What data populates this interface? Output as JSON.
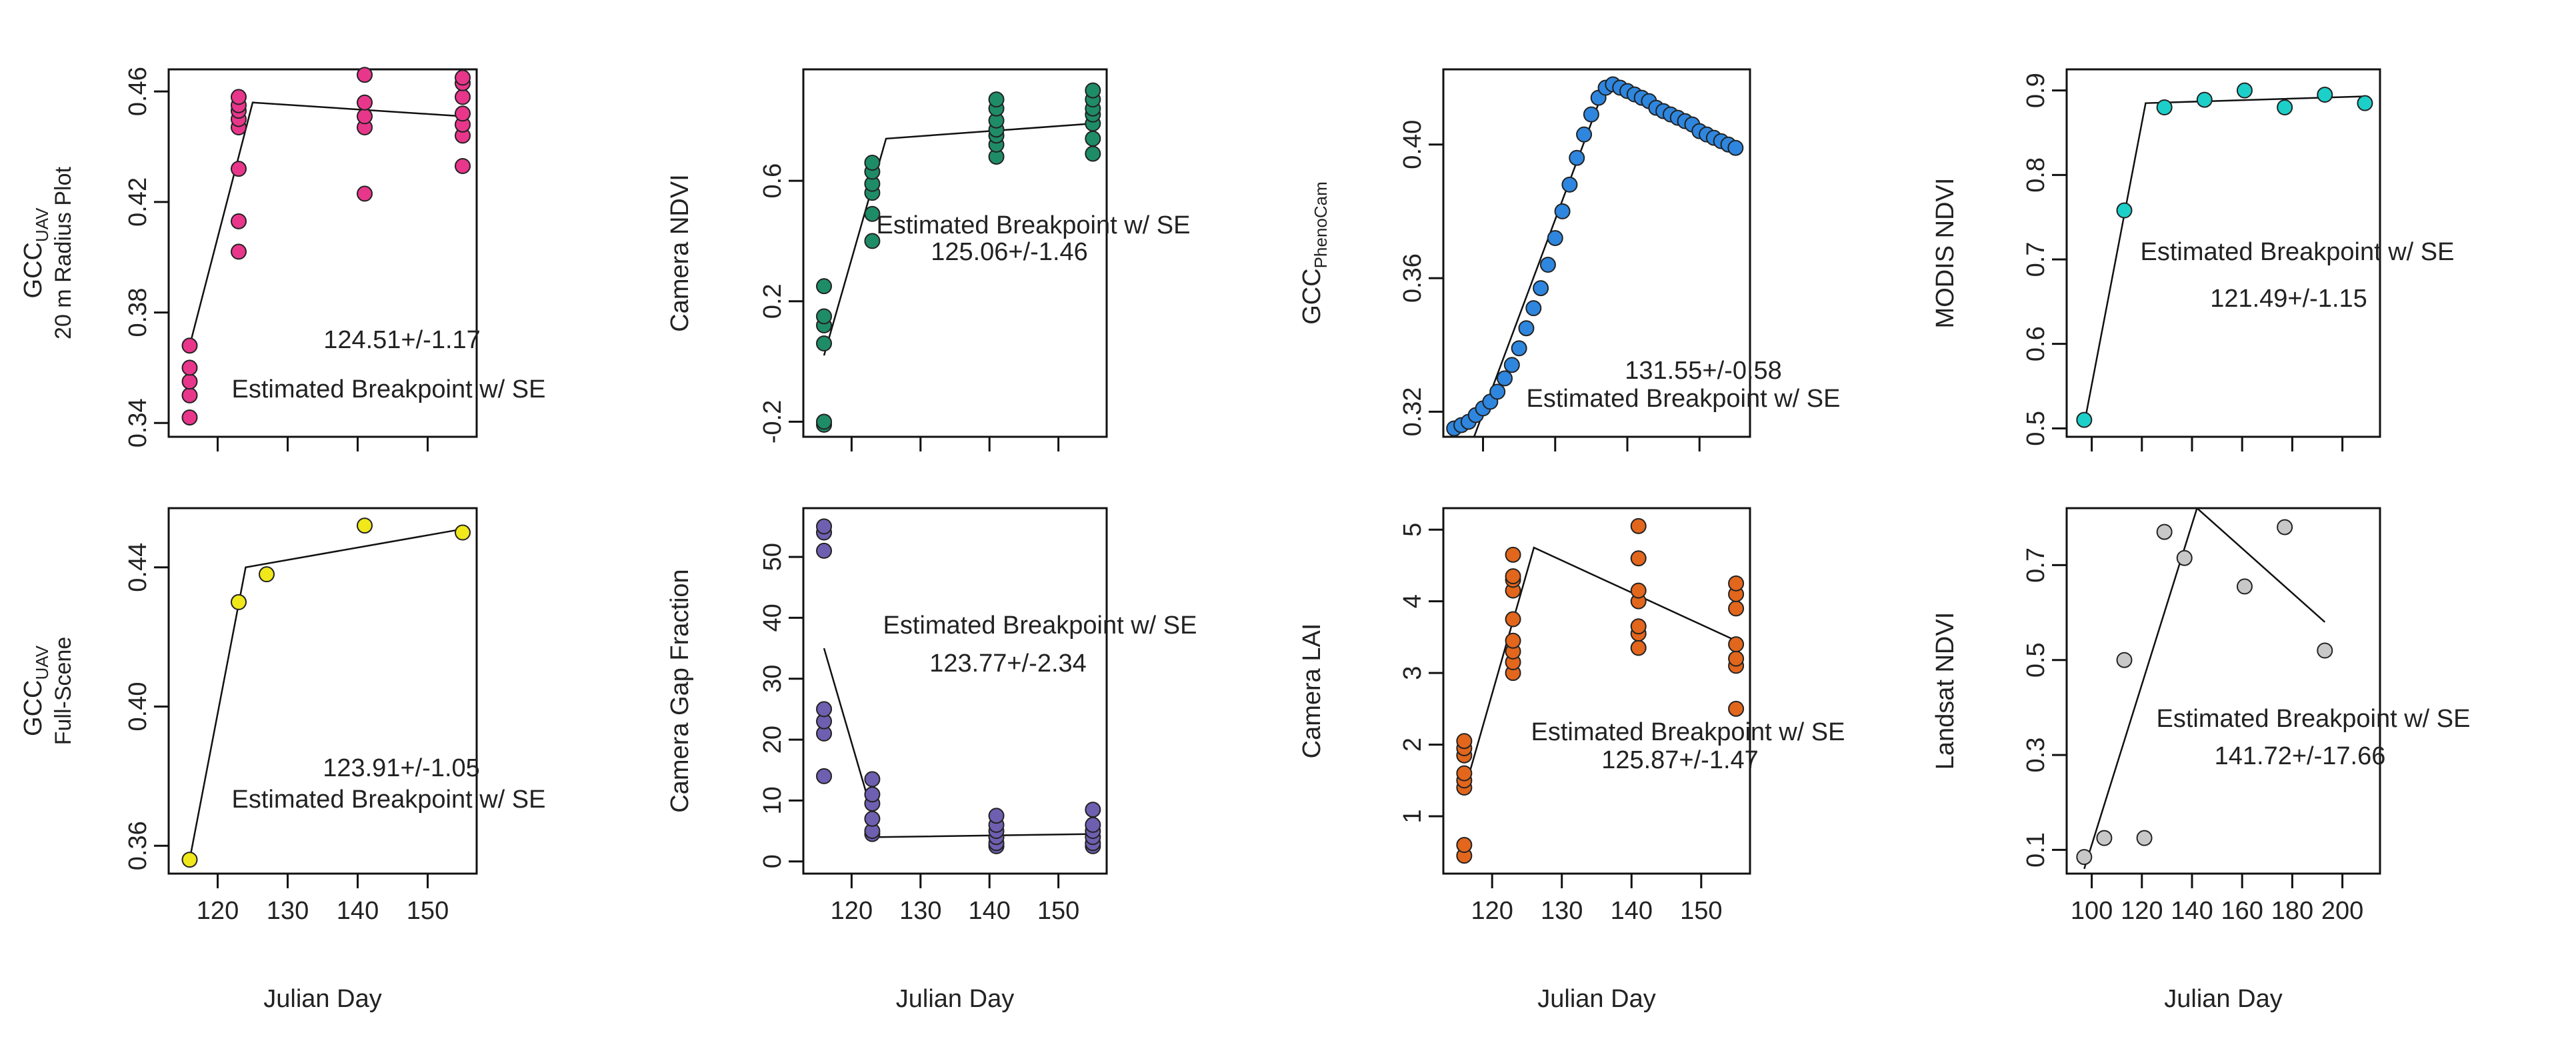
{
  "chart_data": [
    {
      "id": "p1",
      "type": "scatter",
      "ylabel": {
        "main": "GCC",
        "sub": "UAV",
        "line2": "20 m Radius Plot"
      },
      "xlabel": "",
      "xlim": [
        113,
        157
      ],
      "ylim": [
        0.335,
        0.468
      ],
      "xticks": [
        120,
        130,
        140,
        150
      ],
      "xticklabels": [],
      "yticks": [
        0.34,
        0.38,
        0.42,
        0.46
      ],
      "yticklabels": [
        "0.34",
        "0.38",
        "0.42",
        "0.46"
      ],
      "color": "#e8368b",
      "x": [
        116,
        116,
        116,
        116,
        116,
        123,
        123,
        123,
        123,
        123,
        123,
        123,
        123,
        141,
        141,
        141,
        141,
        141,
        155,
        155,
        155,
        155,
        155,
        155,
        155
      ],
      "y": [
        0.342,
        0.35,
        0.355,
        0.36,
        0.368,
        0.402,
        0.413,
        0.432,
        0.447,
        0.45,
        0.453,
        0.455,
        0.458,
        0.423,
        0.447,
        0.451,
        0.456,
        0.466,
        0.433,
        0.444,
        0.448,
        0.452,
        0.458,
        0.463,
        0.465
      ],
      "fit": {
        "x": [
          116,
          125,
          155
        ],
        "y": [
          0.368,
          0.456,
          0.451
        ]
      },
      "annotations": [
        "124.51+/-1.17",
        "Estimated Breakpoint w/ SE"
      ]
    },
    {
      "id": "p2",
      "type": "scatter",
      "ylabel": {
        "main": "Camera NDVI"
      },
      "xlabel": "",
      "xlim": [
        113,
        157
      ],
      "ylim": [
        -0.25,
        0.97
      ],
      "xticks": [
        120,
        130,
        140,
        150
      ],
      "xticklabels": [],
      "yticks": [
        -0.2,
        0.2,
        0.6
      ],
      "yticklabels": [
        "-0.2",
        "0.2",
        "0.6"
      ],
      "color": "#1f8c68",
      "x": [
        116,
        116,
        116,
        116,
        116,
        116,
        123,
        123,
        123,
        123,
        123,
        123,
        141,
        141,
        141,
        141,
        141,
        141,
        141,
        155,
        155,
        155,
        155,
        155,
        155,
        155
      ],
      "y": [
        -0.21,
        -0.2,
        0.06,
        0.12,
        0.15,
        0.25,
        0.4,
        0.49,
        0.56,
        0.59,
        0.63,
        0.66,
        0.68,
        0.72,
        0.75,
        0.77,
        0.8,
        0.84,
        0.87,
        0.69,
        0.74,
        0.79,
        0.82,
        0.84,
        0.87,
        0.9
      ],
      "fit": {
        "x": [
          116,
          125,
          155
        ],
        "y": [
          0.02,
          0.74,
          0.79
        ]
      },
      "annotations": [
        "Estimated Breakpoint w/ SE",
        "125.06+/-1.46"
      ]
    },
    {
      "id": "p3",
      "type": "scatter",
      "ylabel": {
        "main": "GCC",
        "sub": "PhenoCam"
      },
      "xlabel": "",
      "xlim": [
        114.5,
        157
      ],
      "ylim": [
        0.3125,
        0.4225
      ],
      "xticks": [
        120,
        130,
        140,
        150
      ],
      "xticklabels": [],
      "yticks": [
        0.32,
        0.36,
        0.4
      ],
      "yticklabels": [
        "0.32",
        "0.36",
        "0.40"
      ],
      "color": "#2e86de",
      "x": [
        116,
        117,
        118,
        119,
        120,
        121,
        122,
        123,
        124,
        125,
        126,
        127,
        128,
        129,
        130,
        131,
        132,
        133,
        134,
        135,
        136,
        137,
        138,
        139,
        140,
        141,
        142,
        143,
        144,
        145,
        146,
        147,
        148,
        149,
        150,
        151,
        152,
        153,
        154,
        155
      ],
      "y": [
        0.315,
        0.316,
        0.317,
        0.319,
        0.321,
        0.323,
        0.326,
        0.33,
        0.334,
        0.339,
        0.345,
        0.351,
        0.357,
        0.364,
        0.372,
        0.38,
        0.388,
        0.396,
        0.403,
        0.409,
        0.414,
        0.417,
        0.418,
        0.417,
        0.416,
        0.415,
        0.414,
        0.413,
        0.411,
        0.41,
        0.409,
        0.408,
        0.407,
        0.406,
        0.404,
        0.403,
        0.402,
        0.401,
        0.4,
        0.399
      ],
      "fit": {
        "x": [
          118.5,
          137,
          155
        ],
        "y": [
          0.311,
          0.418,
          0.398
        ]
      },
      "annotations": [
        "131.55+/-0.58",
        "Estimated Breakpoint w/ SE"
      ]
    },
    {
      "id": "p4",
      "type": "scatter",
      "ylabel": {
        "main": "MODIS NDVI"
      },
      "xlabel": "",
      "xlim": [
        90,
        215
      ],
      "ylim": [
        0.49,
        0.925
      ],
      "xticks": [
        100,
        120,
        140,
        160,
        180,
        200
      ],
      "xticklabels": [],
      "yticks": [
        0.5,
        0.6,
        0.7,
        0.8,
        0.9
      ],
      "yticklabels": [
        "0.5",
        "0.6",
        "0.7",
        "0.8",
        "0.9"
      ],
      "color": "#1ccfc9",
      "x": [
        97,
        113,
        129,
        145,
        161,
        177,
        193,
        209
      ],
      "y": [
        0.51,
        0.758,
        0.88,
        0.889,
        0.9,
        0.88,
        0.895,
        0.885
      ],
      "fit": {
        "x": [
          97,
          121.5,
          209
        ],
        "y": [
          0.505,
          0.885,
          0.893
        ]
      },
      "annotations": [
        "Estimated Breakpoint w/ SE",
        "121.49+/-1.15"
      ]
    },
    {
      "id": "p5",
      "type": "scatter",
      "ylabel": {
        "main": "GCC",
        "sub": "UAV",
        "line2": "Full-Scene"
      },
      "xlabel": "Julian Day",
      "xlim": [
        113,
        157
      ],
      "ylim": [
        0.352,
        0.457
      ],
      "xticks": [
        120,
        130,
        140,
        150
      ],
      "xticklabels": [
        "120",
        "130",
        "140",
        "150"
      ],
      "yticks": [
        0.36,
        0.4,
        0.44
      ],
      "yticklabels": [
        "0.36",
        "0.40",
        "0.44"
      ],
      "color": "#f0e81a",
      "x": [
        116,
        123,
        127,
        141,
        155
      ],
      "y": [
        0.356,
        0.43,
        0.438,
        0.452,
        0.45
      ],
      "fit": {
        "x": [
          116,
          124,
          155
        ],
        "y": [
          0.356,
          0.44,
          0.451
        ]
      },
      "annotations": [
        "123.91+/-1.05",
        "Estimated Breakpoint w/ SE"
      ]
    },
    {
      "id": "p6",
      "type": "scatter",
      "ylabel": {
        "main": "Camera Gap Fraction"
      },
      "xlabel": "Julian Day",
      "xlim": [
        113,
        157
      ],
      "ylim": [
        -2,
        58
      ],
      "xticks": [
        120,
        130,
        140,
        150
      ],
      "xticklabels": [
        "120",
        "130",
        "140",
        "150"
      ],
      "yticks": [
        0,
        10,
        20,
        30,
        40,
        50
      ],
      "yticklabels": [
        "0",
        "10",
        "20",
        "30",
        "40",
        "50"
      ],
      "color": "#6f5fb0",
      "x": [
        116,
        116,
        116,
        116,
        116,
        116,
        116,
        123,
        123,
        123,
        123,
        123,
        123,
        141,
        141,
        141,
        141,
        141,
        141,
        155,
        155,
        155,
        155,
        155,
        155
      ],
      "y": [
        14,
        21,
        23,
        25,
        51,
        54,
        55,
        4.5,
        5,
        7,
        9.5,
        11,
        13.5,
        2.5,
        3,
        4,
        5,
        6,
        7.5,
        2.5,
        3,
        4,
        5,
        6,
        8.5
      ],
      "fit": {
        "x": [
          116,
          124,
          155
        ],
        "y": [
          35,
          4,
          4.5
        ]
      },
      "annotations": [
        "Estimated Breakpoint w/ SE",
        "123.77+/-2.34"
      ]
    },
    {
      "id": "p7",
      "type": "scatter",
      "ylabel": {
        "main": "Camera LAI"
      },
      "xlabel": "Julian Day",
      "xlim": [
        113,
        157
      ],
      "ylim": [
        0.2,
        5.3
      ],
      "xticks": [
        120,
        130,
        140,
        150
      ],
      "xticklabels": [
        "120",
        "130",
        "140",
        "150"
      ],
      "yticks": [
        1,
        2,
        3,
        4,
        5
      ],
      "yticklabels": [
        "1",
        "2",
        "3",
        "4",
        "5"
      ],
      "color": "#e2661c",
      "x": [
        116,
        116,
        116,
        116,
        116,
        116,
        116,
        116,
        123,
        123,
        123,
        123,
        123,
        123,
        123,
        123,
        123,
        141,
        141,
        141,
        141,
        141,
        141,
        141,
        155,
        155,
        155,
        155,
        155,
        155,
        155
      ],
      "y": [
        0.45,
        0.6,
        1.4,
        1.5,
        1.6,
        1.85,
        1.95,
        2.05,
        3.0,
        3.15,
        3.3,
        3.45,
        3.75,
        4.15,
        4.3,
        4.35,
        4.65,
        3.35,
        3.55,
        3.65,
        4.0,
        4.15,
        4.6,
        5.05,
        2.5,
        3.1,
        3.2,
        3.4,
        3.9,
        4.1,
        4.25
      ],
      "fit": {
        "x": [
          116,
          126,
          155
        ],
        "y": [
          1.35,
          4.75,
          3.45
        ]
      },
      "annotations": [
        "Estimated Breakpoint w/ SE",
        "125.87+/-1.47"
      ]
    },
    {
      "id": "p8",
      "type": "scatter",
      "ylabel": {
        "main": "Landsat NDVI"
      },
      "xlabel": "Julian Day",
      "xlim": [
        90,
        215
      ],
      "ylim": [
        0.05,
        0.82
      ],
      "xticks": [
        100,
        120,
        140,
        160,
        180,
        200
      ],
      "xticklabels": [
        "100",
        "120",
        "140",
        "160",
        "180",
        "200"
      ],
      "yticks": [
        0.1,
        0.3,
        0.5,
        0.7
      ],
      "yticklabels": [
        "0.1",
        "0.3",
        "0.5",
        "0.7"
      ],
      "color": "#c8c8c8",
      "x": [
        97,
        105,
        113,
        121,
        129,
        137,
        161,
        177,
        193
      ],
      "y": [
        0.085,
        0.125,
        0.5,
        0.125,
        0.77,
        0.715,
        0.655,
        0.78,
        0.52
      ],
      "fit": {
        "x": [
          97,
          142,
          193
        ],
        "y": [
          0.06,
          0.82,
          0.58
        ]
      },
      "annotations": [
        "Estimated Breakpoint w/ SE",
        "141.72+/-17.66"
      ]
    }
  ]
}
